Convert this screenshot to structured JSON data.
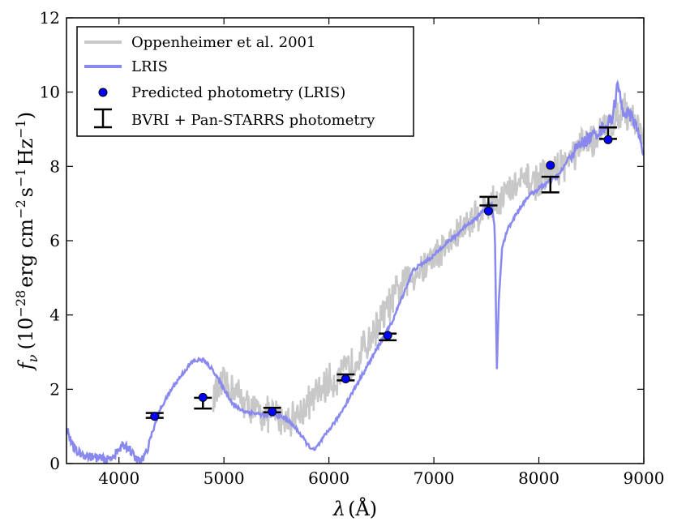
{
  "chart_data": {
    "type": "line",
    "xlabel": "λ (Å)",
    "ylabel": "f_ν (10^−28 erg cm^−2 s^−1 Hz^−1)",
    "ylabel_parts": {
      "symbol": "f",
      "symbol_sub": "ν",
      "open": "(10",
      "exp1": "−28",
      "unit_erg": "erg cm",
      "exp2": "−2",
      "unit_s": "s",
      "exp3": "−1",
      "unit_hz": "Hz",
      "exp4": "−1",
      "close": ")"
    },
    "xlabel_parts": {
      "symbol": "λ",
      "unit": "(Å)"
    },
    "xlim": [
      3500,
      9000
    ],
    "ylim": [
      0,
      12
    ],
    "xticks": [
      4000,
      5000,
      6000,
      7000,
      8000,
      9000
    ],
    "yticks": [
      0,
      2,
      4,
      6,
      8,
      10,
      12
    ],
    "legend": {
      "position": "top-left",
      "entries": [
        "Oppenheimer et al. 2001",
        "LRIS",
        "Predicted photometry (LRIS)",
        "BVRI + Pan-STARRS photometry"
      ]
    },
    "colors": {
      "oppenheimer": "#c8c8c8",
      "lris": "#8888ee",
      "predicted": "#0000ff",
      "photometry": "#000000"
    },
    "series": [
      {
        "name": "Oppenheimer et al. 2001",
        "noise": 0.55,
        "x": [
          4900,
          5000,
          5100,
          5200,
          5300,
          5400,
          5500,
          5600,
          5700,
          5800,
          5900,
          6000,
          6100,
          6200,
          6300,
          6400,
          6500,
          6600,
          6700,
          6800,
          6900,
          7000,
          7100,
          7200,
          7300,
          7400,
          7500,
          7600,
          7700,
          7800,
          7900,
          8000,
          8100,
          8200,
          8300,
          8400,
          8500,
          8600,
          8700,
          8800,
          8900,
          9000
        ],
        "y": [
          1.8,
          2.1,
          2.0,
          1.6,
          1.4,
          1.3,
          1.3,
          1.2,
          1.3,
          1.6,
          1.9,
          2.2,
          2.3,
          2.6,
          3.0,
          3.4,
          3.9,
          4.4,
          4.8,
          5.1,
          5.3,
          5.6,
          5.8,
          6.1,
          6.4,
          6.7,
          6.9,
          7.1,
          7.3,
          7.5,
          7.6,
          7.6,
          7.8,
          8.0,
          8.2,
          8.5,
          8.7,
          8.9,
          9.2,
          9.6,
          9.3,
          8.8
        ]
      },
      {
        "name": "LRIS",
        "x": [
          3500,
          3550,
          3600,
          3700,
          3800,
          3900,
          3980,
          4050,
          4100,
          4150,
          4200,
          4250,
          4300,
          4400,
          4500,
          4600,
          4700,
          4800,
          4900,
          5000,
          5100,
          5200,
          5300,
          5400,
          5500,
          5600,
          5700,
          5800,
          5860,
          5900,
          6000,
          6100,
          6200,
          6300,
          6400,
          6500,
          6600,
          6700,
          6800,
          6900,
          7000,
          7100,
          7200,
          7300,
          7400,
          7500,
          7550,
          7580,
          7600,
          7620,
          7650,
          7700,
          7800,
          7900,
          8000,
          8100,
          8200,
          8300,
          8400,
          8500,
          8600,
          8700,
          8750,
          8800,
          8900,
          9000
        ],
        "y": [
          1.0,
          0.5,
          0.3,
          0.2,
          0.15,
          0.1,
          0.3,
          0.5,
          0.4,
          0.15,
          0.05,
          0.2,
          0.7,
          1.5,
          2.0,
          2.4,
          2.75,
          2.8,
          2.5,
          2.0,
          1.55,
          1.4,
          1.35,
          1.3,
          1.3,
          1.2,
          0.9,
          0.5,
          0.35,
          0.5,
          0.9,
          1.3,
          1.8,
          2.3,
          2.8,
          3.3,
          3.8,
          4.5,
          5.2,
          5.4,
          5.6,
          5.9,
          6.1,
          6.4,
          6.6,
          6.9,
          7.0,
          6.3,
          2.5,
          4.5,
          5.8,
          6.3,
          6.8,
          7.2,
          7.4,
          7.6,
          7.8,
          8.3,
          8.6,
          8.8,
          9.0,
          9.3,
          10.2,
          9.5,
          9.3,
          8.4
        ]
      }
    ],
    "predicted_photometry": {
      "x": [
        4340,
        4800,
        5460,
        6160,
        6560,
        7520,
        8110,
        8660
      ],
      "y": [
        1.27,
        1.78,
        1.4,
        2.28,
        3.45,
        6.8,
        8.03,
        8.72
      ]
    },
    "observed_photometry": {
      "x": [
        4340,
        4800,
        5460,
        6160,
        6560,
        7520,
        8110,
        8660
      ],
      "low": [
        1.23,
        1.48,
        1.38,
        2.24,
        3.32,
        6.95,
        7.3,
        8.74
      ],
      "high": [
        1.36,
        1.77,
        1.5,
        2.4,
        3.5,
        7.18,
        7.72,
        9.05
      ]
    }
  }
}
